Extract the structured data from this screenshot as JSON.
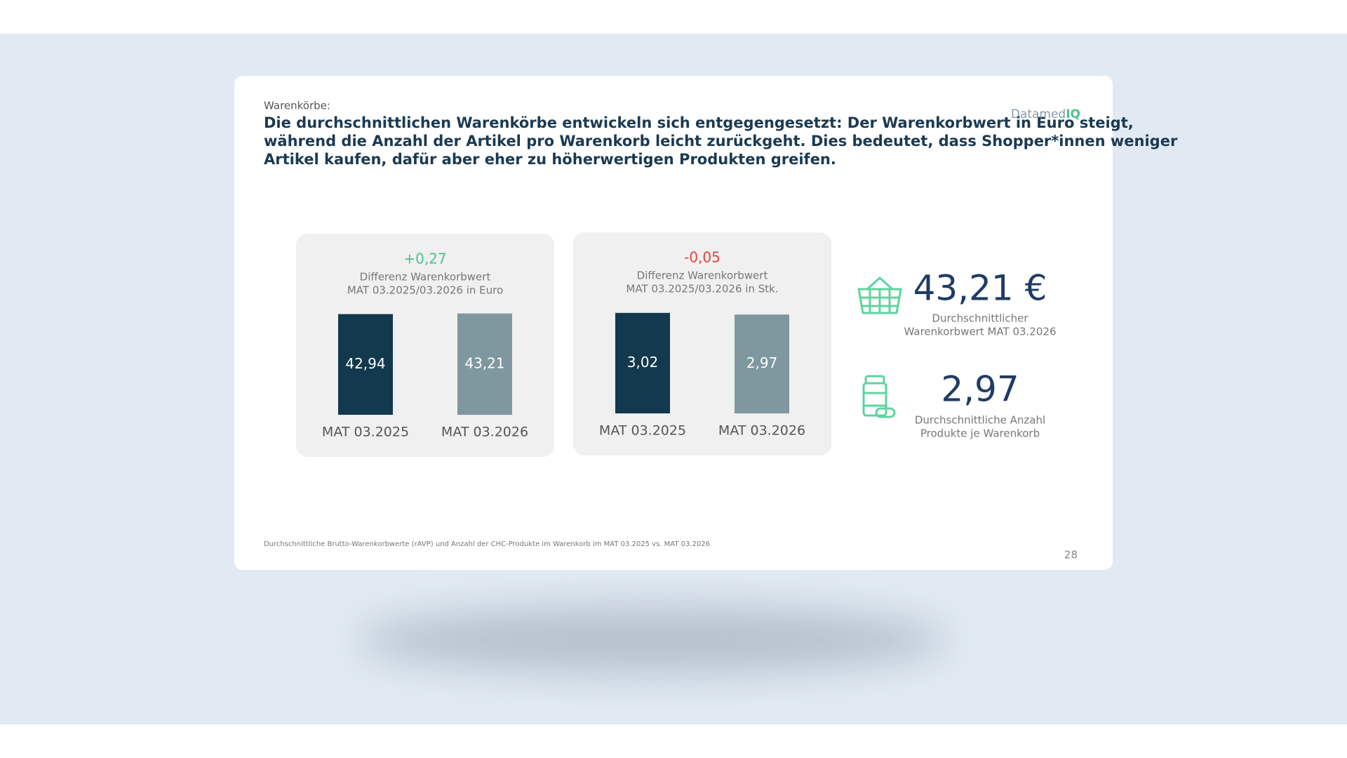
{
  "header": {
    "label": "Warenkörbe:",
    "title": [
      "Die durchschnittlichen Warenkörbe entwickeln sich entgegengesetzt: Der Warenkorbwert in Euro steigt,",
      "während die Anzahl der Artikel pro Warenkorb leicht zurückgeht. Dies bedeutet, dass Shopper*innen weniger",
      "Artikel kaufen, dafür aber eher zu höherwertigen Produkten greifen."
    ]
  },
  "logo": {
    "text": "Datamed",
    "accent": "IQ"
  },
  "chart_data": [
    {
      "type": "bar",
      "title": "+0,27",
      "title_color": "#4cc38a",
      "subtitle": [
        "Differenz Warenkorbwert",
        "MAT 03.2025/03.2026 in Euro"
      ],
      "categories": [
        "MAT 03.2025",
        "MAT 03.2026"
      ],
      "values": [
        42.94,
        43.21
      ],
      "value_labels": [
        "42,94",
        "43,21"
      ],
      "colors": [
        "#12394d",
        "#7f979f"
      ],
      "ylim": [
        0,
        44
      ]
    },
    {
      "type": "bar",
      "title": "-0,05",
      "title_color": "#e0433f",
      "subtitle": [
        "Differenz Warenkorbwert",
        "MAT 03.2025/03.2026 in Stk."
      ],
      "categories": [
        "MAT 03.2025",
        "MAT 03.2026"
      ],
      "values": [
        3.02,
        2.97
      ],
      "value_labels": [
        "3,02",
        "2,97"
      ],
      "colors": [
        "#12394d",
        "#7f979f"
      ],
      "ylim": [
        0,
        3.1
      ]
    }
  ],
  "kpis": [
    {
      "value": "43,21 €",
      "label": [
        "Durchschnittlicher",
        "Warenkorbwert MAT 03.2026"
      ]
    },
    {
      "value": "2,97",
      "label": [
        "Durchschnittliche Anzahl",
        "Produkte je Warenkorb"
      ]
    }
  ],
  "footnote": "Durchschnittliche Brutto-Warenkorbwerte (rAVP) und Anzahl der CHC-Produkte im Warenkorb im MAT 03.2025 vs. MAT 03.2026",
  "page_number": "28"
}
